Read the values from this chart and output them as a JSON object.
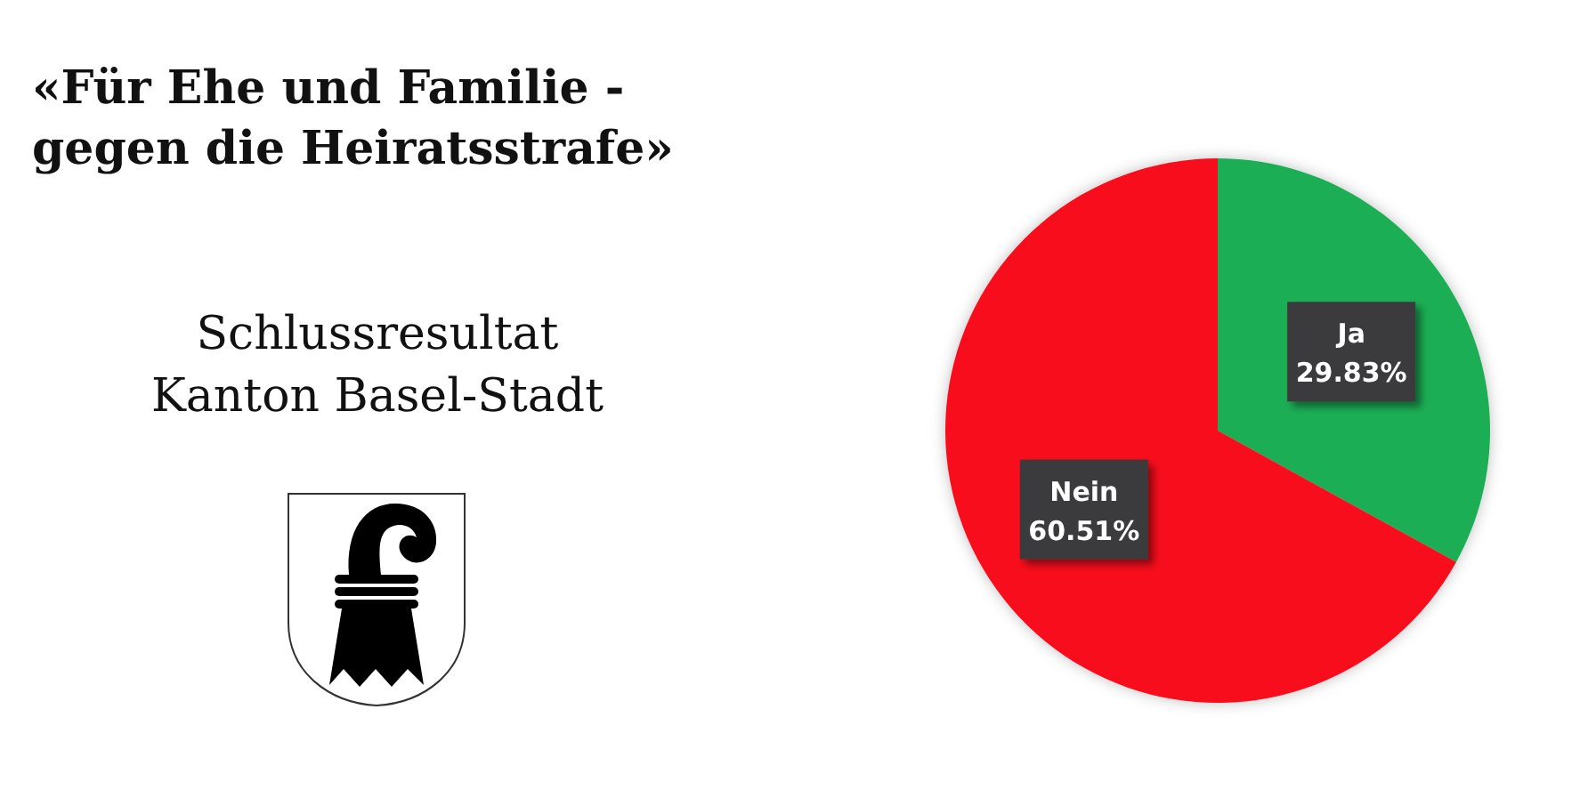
{
  "chart_data": {
    "type": "pie",
    "title": "«Für Ehe und Familie -\ngegen die Heiratsstrafe»",
    "subtitle": "Schlussresultat\nKanton Basel-Stadt",
    "categories": [
      "Ja",
      "Nein"
    ],
    "values": [
      29.83,
      60.51
    ],
    "colors": [
      "#1dae55",
      "#f80d1e"
    ],
    "value_labels": [
      "29.83%",
      "60.51%"
    ]
  }
}
